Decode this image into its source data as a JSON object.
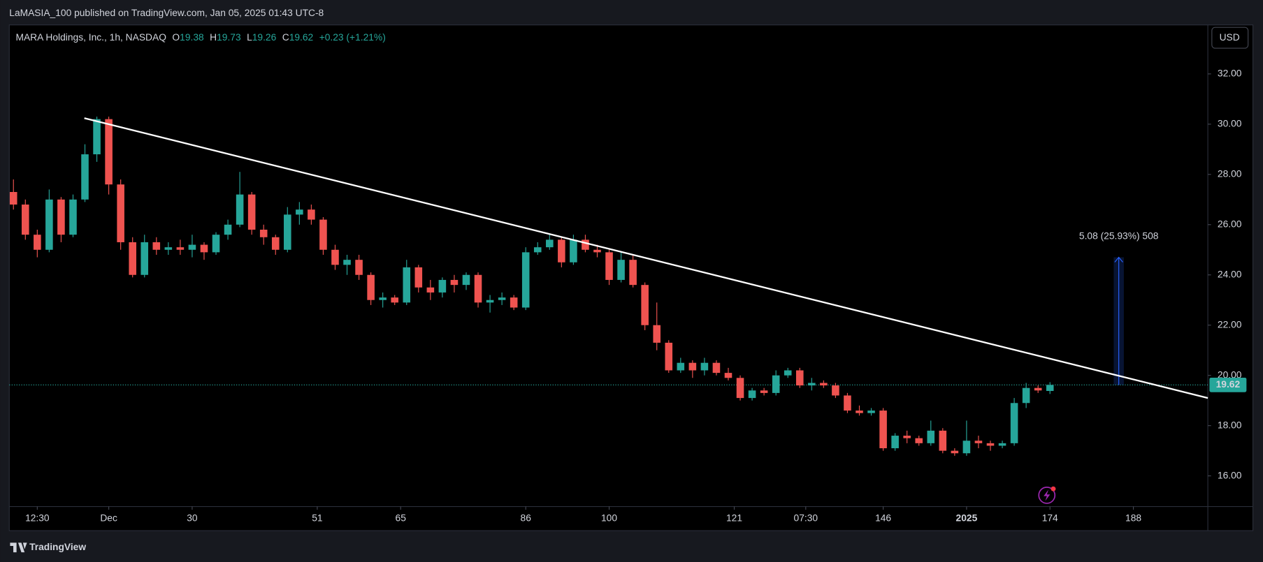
{
  "header": "LaMASIA_100 published on TradingView.com, Jan 05, 2025 01:43 UTC-8",
  "brand": "TradingView",
  "chart_data": {
    "type": "candlestick",
    "currency": "USD",
    "legend": {
      "name": "MARA Holdings, Inc., 1h, NASDAQ",
      "labels": [
        "O",
        "H",
        "L",
        "C"
      ],
      "change": "+0.23 (+1.21%)"
    },
    "up_color": "#26a69a",
    "down_color": "#ef5350",
    "x": [
      0,
      2,
      4,
      6,
      8,
      10,
      12,
      14,
      16,
      18,
      20,
      22,
      24,
      26,
      28,
      30,
      32,
      34,
      36,
      38,
      40,
      42,
      44,
      46,
      48,
      50,
      52,
      54,
      56,
      58,
      60,
      62,
      64,
      66,
      68,
      70,
      72,
      74,
      76,
      78,
      80,
      82,
      84,
      86,
      88,
      90,
      92,
      94,
      96,
      98,
      100,
      102,
      104,
      106,
      108,
      110,
      112,
      114,
      116,
      118,
      120,
      122,
      124,
      126,
      128,
      130,
      132,
      134,
      136,
      138,
      140,
      142,
      144,
      146,
      148,
      150,
      152,
      154,
      156,
      158,
      160,
      162,
      164,
      166,
      168,
      170,
      172,
      174
    ],
    "open": [
      27.3,
      26.8,
      25.6,
      25.0,
      27.0,
      25.6,
      27.0,
      28.8,
      30.2,
      27.6,
      25.3,
      24.0,
      25.3,
      25.0,
      25.1,
      25.0,
      25.2,
      24.9,
      25.6,
      26.0,
      27.2,
      25.8,
      25.5,
      25.0,
      26.4,
      26.6,
      26.2,
      25.0,
      24.4,
      24.6,
      24.0,
      23.0,
      23.1,
      22.9,
      24.3,
      23.5,
      23.3,
      23.8,
      23.6,
      24.0,
      22.9,
      23.0,
      23.1,
      22.7,
      24.9,
      25.1,
      25.4,
      24.5,
      25.4,
      25.0,
      24.9,
      23.8,
      24.6,
      23.6,
      22.0,
      21.3,
      20.2,
      20.5,
      20.2,
      20.5,
      20.1,
      19.9,
      19.1,
      19.4,
      19.3,
      20.0,
      20.2,
      19.6,
      19.7,
      19.6,
      19.2,
      18.6,
      18.5,
      18.6,
      17.1,
      17.6,
      17.5,
      17.3,
      17.8,
      17.0,
      16.9,
      17.4,
      17.3,
      17.2,
      17.3,
      18.9,
      19.5,
      19.38
    ],
    "high": [
      27.8,
      27.0,
      25.8,
      27.4,
      27.1,
      27.2,
      29.2,
      30.3,
      30.3,
      27.8,
      25.5,
      25.6,
      25.5,
      25.3,
      25.4,
      25.6,
      25.3,
      25.7,
      26.2,
      28.1,
      27.3,
      26.0,
      25.6,
      26.7,
      26.9,
      26.8,
      26.3,
      25.2,
      24.8,
      24.8,
      24.1,
      23.3,
      23.2,
      24.6,
      24.4,
      23.8,
      23.9,
      24.0,
      24.1,
      24.1,
      23.2,
      23.3,
      23.2,
      25.1,
      25.3,
      25.6,
      25.5,
      25.6,
      25.6,
      25.2,
      25.0,
      24.9,
      24.8,
      23.7,
      22.9,
      21.4,
      20.7,
      20.6,
      20.7,
      20.6,
      20.3,
      20.0,
      19.5,
      19.5,
      20.2,
      20.3,
      20.3,
      19.9,
      19.8,
      19.7,
      19.3,
      18.8,
      18.7,
      18.7,
      17.7,
      17.8,
      17.6,
      18.2,
      17.9,
      17.1,
      18.2,
      17.6,
      17.4,
      17.4,
      19.1,
      19.7,
      19.6,
      19.73
    ],
    "low": [
      26.6,
      25.4,
      24.7,
      24.9,
      25.3,
      25.5,
      26.9,
      28.5,
      27.2,
      25.0,
      23.9,
      23.9,
      24.8,
      24.8,
      24.8,
      24.7,
      24.6,
      24.8,
      25.4,
      25.9,
      25.6,
      25.2,
      24.8,
      24.9,
      26.0,
      26.0,
      24.8,
      24.2,
      24.0,
      23.8,
      22.8,
      22.7,
      22.8,
      22.8,
      23.3,
      23.0,
      23.1,
      23.3,
      23.4,
      22.7,
      22.5,
      22.8,
      22.6,
      22.6,
      24.8,
      25.0,
      24.3,
      24.4,
      24.9,
      24.7,
      23.6,
      23.7,
      23.5,
      21.8,
      21.0,
      20.1,
      20.1,
      19.9,
      20.0,
      20.0,
      19.8,
      19.0,
      19.0,
      19.2,
      19.2,
      19.9,
      19.5,
      19.4,
      19.5,
      19.1,
      18.5,
      18.4,
      18.4,
      17.0,
      17.0,
      17.3,
      17.2,
      17.2,
      16.9,
      16.8,
      16.8,
      17.1,
      17.0,
      17.1,
      17.2,
      18.7,
      19.3,
      19.26
    ],
    "close": [
      26.8,
      25.6,
      25.0,
      27.0,
      25.6,
      27.0,
      28.8,
      30.2,
      27.6,
      25.3,
      24.0,
      25.3,
      25.0,
      25.1,
      25.0,
      25.2,
      24.9,
      25.6,
      26.0,
      27.2,
      25.8,
      25.5,
      25.0,
      26.4,
      26.6,
      26.2,
      25.0,
      24.4,
      24.6,
      24.0,
      23.0,
      23.1,
      22.9,
      24.3,
      23.5,
      23.3,
      23.8,
      23.6,
      24.0,
      22.9,
      23.0,
      23.1,
      22.7,
      24.9,
      25.1,
      25.4,
      24.5,
      25.4,
      25.0,
      24.9,
      23.8,
      24.6,
      23.6,
      22.0,
      21.3,
      20.2,
      20.5,
      20.2,
      20.5,
      20.1,
      19.9,
      19.1,
      19.4,
      19.3,
      20.0,
      20.2,
      19.6,
      19.7,
      19.6,
      19.2,
      18.6,
      18.5,
      18.6,
      17.1,
      17.6,
      17.5,
      17.3,
      17.8,
      17.0,
      16.9,
      17.4,
      17.3,
      17.2,
      17.3,
      18.9,
      19.5,
      19.4,
      19.62
    ],
    "xlim": [
      -0.7,
      200.5
    ],
    "xticks": [
      {
        "value": 4,
        "label": "12:30"
      },
      {
        "value": 16,
        "label": "Dec"
      },
      30,
      51,
      65,
      86,
      100,
      121,
      {
        "value": 133,
        "label": "07:30"
      },
      146,
      {
        "value": 160,
        "label": "2025"
      },
      174,
      188
    ],
    "ylim": [
      14.78,
      33.95
    ],
    "yticks": [
      {
        "value": 16,
        "label": "16.00"
      },
      {
        "value": 18,
        "label": "18.00"
      },
      {
        "value": 20,
        "label": "20.00"
      },
      {
        "value": 22,
        "label": "22.00"
      },
      {
        "value": 24,
        "label": "24.00"
      },
      {
        "value": 26,
        "label": "26.00"
      },
      {
        "value": 28,
        "label": "28.00"
      },
      {
        "value": 30,
        "label": "30.00"
      },
      {
        "value": 32,
        "label": "32.00"
      }
    ],
    "tick_labels_as_days": [
      30,
      51,
      65,
      86,
      100,
      121,
      146,
      174,
      188
    ],
    "trendline": {
      "x": [
        11.9,
        200.5
      ],
      "y": [
        30.24,
        19.1
      ],
      "color": "#ffffff"
    },
    "measure": {
      "label": "5.08 (25.93%) 508",
      "x": [
        184.7,
        186.4
      ],
      "y": [
        19.62,
        24.7
      ],
      "color": "#2962ff"
    },
    "price_line": {
      "value": 19.62,
      "color": "#26a69a"
    }
  }
}
